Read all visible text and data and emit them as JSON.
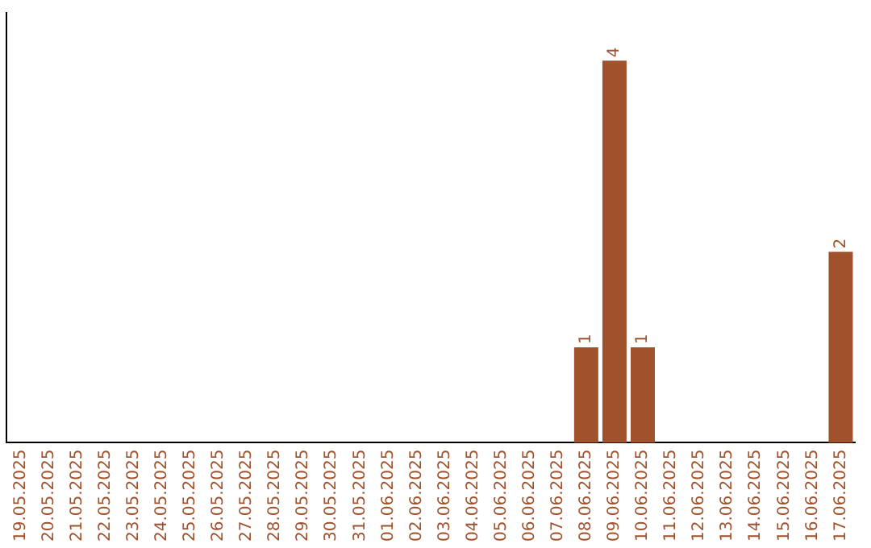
{
  "chart_data": {
    "type": "bar",
    "categories": [
      "19.05.2025",
      "20.05.2025",
      "21.05.2025",
      "22.05.2025",
      "23.05.2025",
      "24.05.2025",
      "25.05.2025",
      "26.05.2025",
      "27.05.2025",
      "28.05.2025",
      "29.05.2025",
      "30.05.2025",
      "31.05.2025",
      "01.06.2025",
      "02.06.2025",
      "03.06.2025",
      "04.06.2025",
      "05.06.2025",
      "06.06.2025",
      "07.06.2025",
      "08.06.2025",
      "09.06.2025",
      "10.06.2025",
      "11.06.2025",
      "12.06.2025",
      "13.06.2025",
      "14.06.2025",
      "15.06.2025",
      "16.06.2025",
      "17.06.2025"
    ],
    "values": [
      null,
      null,
      null,
      null,
      null,
      null,
      null,
      null,
      null,
      null,
      null,
      null,
      null,
      null,
      null,
      null,
      null,
      null,
      null,
      null,
      1,
      4,
      1,
      null,
      null,
      null,
      null,
      null,
      null,
      2
    ],
    "data_labels": true,
    "color": "#a0522d",
    "grid": false,
    "legend": false,
    "tick_labels": "x"
  }
}
